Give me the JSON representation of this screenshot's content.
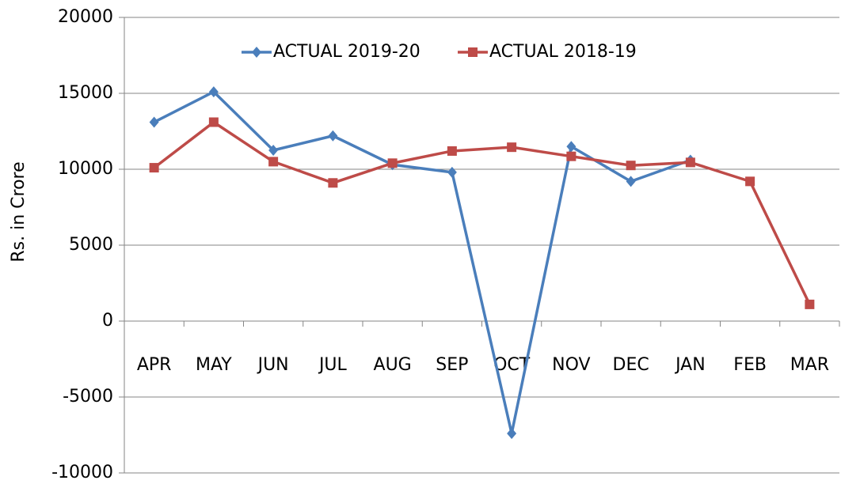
{
  "chart_data": {
    "type": "line",
    "y_label": "Rs. in Crore",
    "categories": [
      "APR",
      "MAY",
      "JUN",
      "JUL",
      "AUG",
      "SEP",
      "OCT",
      "NOV",
      "DEC",
      "JAN",
      "FEB",
      "MAR"
    ],
    "series": [
      {
        "name": "ACTUAL 2019-20",
        "color": "#4a7ebb",
        "marker": "diamond",
        "values": [
          13100,
          15100,
          11250,
          12200,
          10300,
          9800,
          -7400,
          11500,
          9200,
          10600,
          null,
          null
        ]
      },
      {
        "name": "ACTUAL 2018-19",
        "color": "#be4b48",
        "marker": "square",
        "values": [
          10100,
          13100,
          10500,
          9100,
          10400,
          11200,
          11450,
          10850,
          10250,
          10450,
          9200,
          1100
        ]
      }
    ],
    "ylim": [
      -10000,
      20000
    ],
    "yticks": [
      -10000,
      -5000,
      0,
      5000,
      10000,
      15000,
      20000
    ],
    "grid": true,
    "legend": "top"
  }
}
